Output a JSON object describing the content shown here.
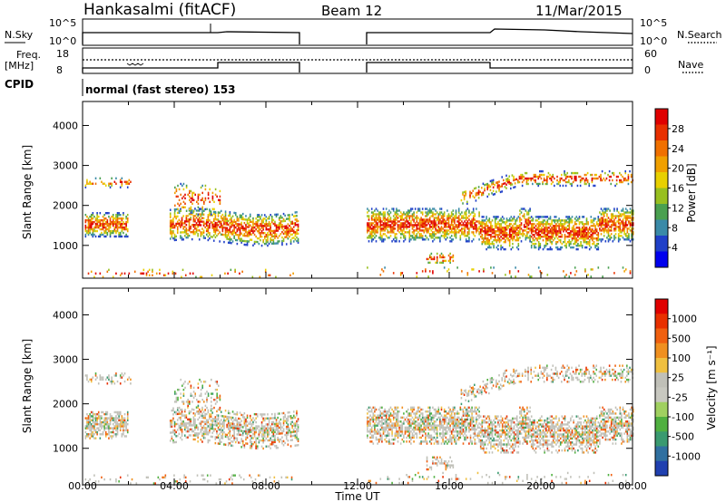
{
  "header": {
    "title": "Hankasalmi (fitACF)",
    "beam": "Beam 12",
    "date": "11/Mar/2015"
  },
  "params": {
    "nsky_label": "N.Sky",
    "nsearch_label": "N.Search",
    "freq_label_1": "Freq.",
    "freq_label_2": "[MHz]",
    "nave_label": "Nave",
    "cpid_label": "CPID",
    "cpid_text": "normal (fast stereo) 153",
    "noise_ticks": [
      "10^5",
      "10^0"
    ],
    "noise_ticks_right": [
      "10^5",
      "10^0"
    ],
    "freq_ticks": [
      "18",
      "8"
    ],
    "nave_ticks": [
      "60",
      "0"
    ]
  },
  "chart_data": [
    {
      "type": "heatmap",
      "name": "power",
      "ylabel": "Slant Range [km]",
      "yticks": [
        "4000",
        "3000",
        "2000",
        "1000"
      ],
      "ylim": [
        180,
        4600
      ],
      "colorbar_label": "Power [dB]",
      "colorbar_ticks": [
        "28",
        "24",
        "20",
        "16",
        "12",
        "8",
        "4"
      ],
      "colorbar_colors": [
        "#0000ee",
        "#2040c8",
        "#3a8aa8",
        "#4aa050",
        "#98c020",
        "#e8d000",
        "#f0a000",
        "#f07000",
        "#e83000",
        "#e00000"
      ]
    },
    {
      "type": "heatmap",
      "name": "velocity",
      "ylabel": "Slant Range [km]",
      "yticks": [
        "4000",
        "3000",
        "2000",
        "1000"
      ],
      "ylim": [
        180,
        4600
      ],
      "colorbar_label": "Velocity [m s⁻¹]",
      "colorbar_ticks": [
        "1000",
        "500",
        "100",
        "25",
        "-25",
        "-100",
        "-500",
        "-1000"
      ],
      "colorbar_colors": [
        "#2040b0",
        "#3070a0",
        "#3a9a70",
        "#50b040",
        "#a0d060",
        "#c8c8c0",
        "#c0c0b8",
        "#f0c040",
        "#f09020",
        "#f06010",
        "#e83000",
        "#e00000"
      ]
    }
  ],
  "xaxis": {
    "ticks": [
      "00:00",
      "04:00",
      "08:00",
      "12:00",
      "16:00",
      "20:00",
      "00:00"
    ],
    "label": "Time UT"
  }
}
